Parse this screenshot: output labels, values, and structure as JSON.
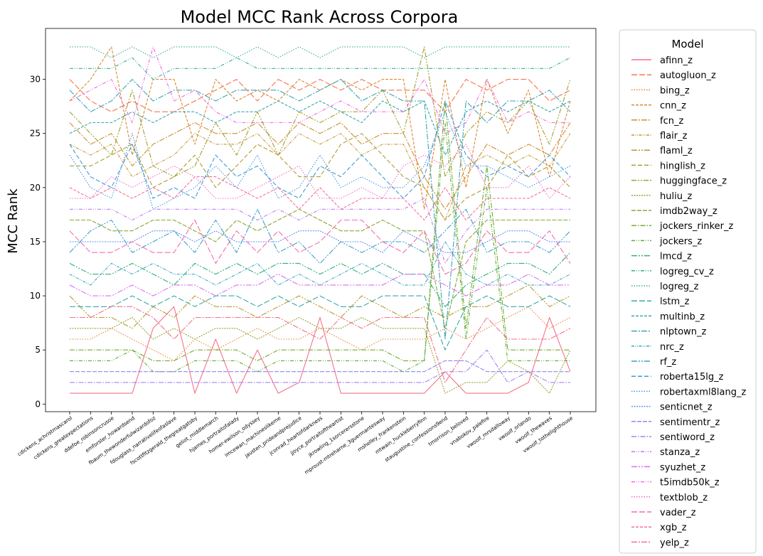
{
  "chart_data": {
    "type": "line",
    "title": "Model MCC Rank Across Corpora",
    "xlabel": "",
    "ylabel": "MCC Rank",
    "ylim": [
      -0.7,
      34.7
    ],
    "yticks": [
      0,
      5,
      10,
      15,
      20,
      25,
      30
    ],
    "grid": false,
    "legend": {
      "title": "Model",
      "placement": "outside-right"
    },
    "categories": [
      "cdickens_achristmascarol",
      "cdickens_greatexpectations",
      "ddefoe_robinsoncrusoe",
      "emforster_howardsend",
      "fbaum_thewonderfulwizardofoz",
      "fdouglass_narrativelifeofaslave",
      "fscottfitzgerald_thegreatgatsby",
      "geliot_middlemarch",
      "hjames_portraitofalady",
      "homer-ewilson_odyssey",
      "imcewan_machineslikeme",
      "jausten_prideandprejudice",
      "jconrad_heartofdarkness",
      "jjoyce_portraitoftheartist",
      "jkrowling_1sorcerersstone",
      "mproust-mtreharne_3guermantesway",
      "mshelley_frankenstein",
      "mtwain_huckleberryfinn",
      "staugustine_confessions9end",
      "tmorrison_beloved",
      "vnabokov_palefire",
      "vwoolf_mrsdalloway",
      "vwoolf_orlando",
      "vwoolf_thewaves",
      "vwoolf_tothelighthouse"
    ],
    "series": [
      {
        "name": "afinn_z",
        "color": "#f77189",
        "dash": "",
        "values": [
          1,
          1,
          1,
          1,
          7,
          9,
          1,
          6,
          1,
          5,
          1,
          2,
          8,
          1,
          1,
          1,
          1,
          1,
          3,
          1,
          1,
          1,
          2,
          8,
          3
        ]
      },
      {
        "name": "autogluon_z",
        "color": "#f7754f",
        "dash": "8,3",
        "values": [
          30,
          28,
          27,
          28,
          27,
          27,
          28,
          29,
          30,
          28,
          30,
          29,
          30,
          29,
          30,
          29,
          29,
          29,
          27,
          30,
          29,
          30,
          30,
          28,
          29
        ]
      },
      {
        "name": "bing_z",
        "color": "#e98230",
        "dash": "1.5,2",
        "values": [
          6,
          6,
          7,
          6,
          5,
          4,
          6,
          5,
          6,
          7,
          6,
          6,
          7,
          6,
          5,
          6,
          6,
          6,
          7,
          6,
          7,
          8,
          9,
          7,
          8
        ]
      },
      {
        "name": "cnn_z",
        "color": "#dc8932",
        "dash": "4,2",
        "values": [
          28,
          30,
          33,
          23,
          30,
          30,
          24,
          30,
          28,
          29,
          28,
          30,
          29,
          30,
          29,
          30,
          30,
          18,
          30,
          20,
          30,
          25,
          29,
          21,
          28
        ]
      },
      {
        "name": "fcn_z",
        "color": "#ce8f31",
        "dash": "8,2,2,2",
        "values": [
          26,
          24,
          25,
          22,
          24,
          25,
          26,
          25,
          25,
          26,
          24,
          26,
          25,
          26,
          24,
          25,
          25,
          21,
          18,
          21,
          24,
          23,
          24,
          23,
          26
        ]
      },
      {
        "name": "flair_z",
        "color": "#c39532",
        "dash": "4,1.5,1,1.5,1,1.5",
        "values": [
          24,
          23,
          24,
          21,
          22,
          23,
          25,
          24,
          24,
          25,
          23,
          25,
          24,
          25,
          23,
          24,
          24,
          20,
          17,
          22,
          23,
          22,
          23,
          22,
          25
        ]
      },
      {
        "name": "flaml_z",
        "color": "#b99a31",
        "dash": "8,2,2,2,2,2",
        "values": [
          10,
          8,
          8,
          7,
          9,
          8,
          10,
          9,
          9,
          8,
          9,
          10,
          9,
          8,
          10,
          9,
          8,
          9,
          8,
          9,
          9,
          10,
          11,
          9,
          10
        ]
      },
      {
        "name": "hinglish_z",
        "color": "#ae9d31",
        "dash": "6,3",
        "values": [
          22,
          22,
          23,
          24,
          20,
          21,
          23,
          20,
          22,
          24,
          23,
          21,
          21,
          24,
          25,
          23,
          21,
          20,
          17,
          19,
          20,
          23,
          21,
          22,
          20
        ]
      },
      {
        "name": "huggingface_z",
        "color": "#a4a031",
        "dash": "7,2,2,2,2,2",
        "values": [
          27,
          25,
          23,
          29,
          22,
          21,
          22,
          26,
          23,
          27,
          23,
          27,
          26,
          27,
          27,
          29,
          25,
          33,
          21,
          25,
          27,
          26,
          28,
          24,
          30
        ]
      },
      {
        "name": "huliu_z",
        "color": "#97a431",
        "dash": "2,1.5",
        "values": [
          7,
          7,
          7,
          8,
          6,
          7,
          6,
          7,
          7,
          6,
          7,
          8,
          7,
          7,
          8,
          7,
          7,
          7,
          1,
          2,
          2,
          4,
          3,
          1,
          5
        ]
      },
      {
        "name": "imdb2way_z",
        "color": "#8aa831",
        "dash": "6,2",
        "values": [
          17,
          17,
          16,
          16,
          17,
          17,
          16,
          15,
          17,
          16,
          17,
          18,
          17,
          16,
          16,
          17,
          16,
          16,
          7,
          15,
          17,
          17,
          17,
          17,
          17
        ]
      },
      {
        "name": "jockers_rinker_z",
        "color": "#76ab31",
        "dash": "7,2,1.5,2",
        "values": [
          5,
          5,
          5,
          5,
          4,
          4,
          5,
          5,
          5,
          4,
          5,
          5,
          5,
          5,
          5,
          5,
          4,
          4,
          28,
          7,
          22,
          5,
          5,
          5,
          5
        ]
      },
      {
        "name": "jockers_z",
        "color": "#55ae32",
        "dash": "5,2,1,2,1,2",
        "values": [
          4,
          4,
          4,
          5,
          3,
          3,
          4,
          4,
          4,
          3,
          4,
          4,
          4,
          4,
          4,
          4,
          3,
          4,
          26,
          6,
          20,
          4,
          4,
          4,
          4
        ]
      },
      {
        "name": "lmcd_z",
        "color": "#33b07a",
        "dash": "8,2,2,2,2,2",
        "values": [
          13,
          12,
          12,
          13,
          12,
          11,
          13,
          12,
          13,
          12,
          13,
          13,
          12,
          13,
          12,
          13,
          12,
          12,
          9,
          11,
          12,
          13,
          13,
          12,
          14
        ]
      },
      {
        "name": "logreg_cv_z",
        "color": "#35ad93",
        "dash": "5,2,1,2,1,2",
        "values": [
          31,
          31,
          31,
          32,
          30,
          31,
          31,
          31,
          32,
          31,
          31,
          31,
          31,
          31,
          31,
          31,
          31,
          31,
          31,
          31,
          31,
          31,
          31,
          31,
          32
        ]
      },
      {
        "name": "logreg_z",
        "color": "#36ab9f",
        "dash": "1.5,2",
        "values": [
          33,
          33,
          32,
          33,
          32,
          33,
          33,
          33,
          32,
          33,
          32,
          33,
          32,
          33,
          33,
          33,
          33,
          32,
          33,
          33,
          33,
          33,
          33,
          33,
          33
        ]
      },
      {
        "name": "lstm_z",
        "color": "#37aaa8",
        "dash": "8,3",
        "values": [
          9,
          9,
          9,
          10,
          9,
          10,
          9,
          10,
          10,
          9,
          10,
          9,
          10,
          9,
          9,
          10,
          10,
          10,
          5,
          9,
          10,
          9,
          9,
          10,
          9
        ]
      },
      {
        "name": "multinb_z",
        "color": "#38a8b0",
        "dash": "4,2",
        "values": [
          25,
          26,
          26,
          27,
          26,
          27,
          27,
          26,
          27,
          27,
          28,
          27,
          28,
          27,
          26,
          28,
          27,
          28,
          23,
          27,
          28,
          27,
          28,
          27,
          28
        ]
      },
      {
        "name": "nlptown_z",
        "color": "#39a6b8",
        "dash": "8,2,2,2",
        "values": [
          29,
          27,
          28,
          30,
          28,
          29,
          29,
          28,
          29,
          29,
          29,
          28,
          29,
          30,
          28,
          29,
          28,
          28,
          6,
          28,
          26,
          28,
          28,
          29,
          27
        ]
      },
      {
        "name": "nrc_z",
        "color": "#3aa4c1",
        "dash": "4,1.5,1,1.5,1,1.5",
        "values": [
          12,
          11,
          13,
          12,
          13,
          12,
          12,
          11,
          12,
          13,
          11,
          12,
          11,
          12,
          13,
          12,
          11,
          11,
          15,
          12,
          11,
          12,
          11,
          11,
          12
        ]
      },
      {
        "name": "rf_z",
        "color": "#3ca1cc",
        "dash": "8,2,2,2,2,2",
        "values": [
          14,
          16,
          17,
          14,
          15,
          16,
          14,
          17,
          14,
          18,
          14,
          15,
          13,
          15,
          14,
          15,
          15,
          14,
          16,
          18,
          14,
          15,
          15,
          14,
          16
        ]
      },
      {
        "name": "roberta15lg_z",
        "color": "#3e9cd9",
        "dash": "6,3",
        "values": [
          24,
          21,
          20,
          24,
          19,
          20,
          19,
          23,
          21,
          22,
          20,
          19,
          22,
          21,
          23,
          21,
          19,
          21,
          28,
          23,
          21,
          22,
          21,
          23,
          21
        ]
      },
      {
        "name": "robertaxml8lang_z",
        "color": "#4297ea",
        "dash": "1.5,2",
        "values": [
          23,
          20,
          19,
          25,
          18,
          19,
          20,
          22,
          20,
          23,
          19,
          20,
          23,
          20,
          21,
          20,
          20,
          22,
          27,
          22,
          22,
          21,
          20,
          21,
          22
        ]
      },
      {
        "name": "senticnet_z",
        "color": "#6690f3",
        "dash": "2,1.5",
        "values": [
          15,
          15,
          15,
          15,
          16,
          16,
          15,
          16,
          15,
          15,
          15,
          16,
          16,
          15,
          15,
          14,
          16,
          15,
          14,
          14,
          15,
          16,
          16,
          15,
          15
        ]
      },
      {
        "name": "sentimentr_z",
        "color": "#8d88f3",
        "dash": "6,2",
        "values": [
          3,
          3,
          3,
          3,
          3,
          3,
          3,
          3,
          3,
          3,
          3,
          3,
          3,
          3,
          3,
          3,
          3,
          3,
          4,
          4,
          3,
          3,
          3,
          3,
          3
        ]
      },
      {
        "name": "sentiword_z",
        "color": "#a981f4",
        "dash": "7,2,1.5,2",
        "values": [
          2,
          2,
          2,
          2,
          2,
          2,
          2,
          2,
          2,
          2,
          2,
          2,
          2,
          2,
          2,
          2,
          2,
          2,
          3,
          3,
          5,
          2,
          3,
          2,
          2
        ]
      },
      {
        "name": "stanza_z",
        "color": "#c179f4",
        "dash": "5,2,1,2,1,2",
        "values": [
          18,
          18,
          18,
          17,
          18,
          18,
          18,
          18,
          18,
          17,
          18,
          17,
          18,
          18,
          18,
          18,
          18,
          19,
          13,
          16,
          18,
          18,
          18,
          18,
          18
        ]
      },
      {
        "name": "syuzhet_z",
        "color": "#d96ff4",
        "dash": "8,2,2,2,2,2",
        "values": [
          11,
          10,
          10,
          11,
          10,
          11,
          11,
          10,
          11,
          11,
          12,
          11,
          11,
          11,
          11,
          11,
          12,
          12,
          11,
          10,
          11,
          11,
          12,
          11,
          11
        ]
      },
      {
        "name": "t5imdb50k_z",
        "color": "#f565e4",
        "dash": "5,2,1,2,1,2",
        "values": [
          28,
          29,
          30,
          26,
          33,
          28,
          29,
          27,
          26,
          26,
          26,
          26,
          27,
          28,
          27,
          27,
          27,
          30,
          25,
          26,
          30,
          26,
          27,
          26,
          26
        ]
      },
      {
        "name": "textblob_z",
        "color": "#f56ac6",
        "dash": "1.5,2",
        "values": [
          19,
          19,
          21,
          20,
          21,
          22,
          21,
          19,
          19,
          20,
          21,
          22,
          19,
          19,
          20,
          19,
          22,
          23,
          22,
          24,
          20,
          20,
          22,
          19,
          21
        ]
      },
      {
        "name": "vader_z",
        "color": "#f66dae",
        "dash": "8,3",
        "values": [
          16,
          14,
          14,
          15,
          14,
          14,
          17,
          13,
          16,
          14,
          16,
          14,
          15,
          17,
          17,
          15,
          14,
          16,
          12,
          13,
          16,
          14,
          14,
          16,
          13
        ]
      },
      {
        "name": "xgb_z",
        "color": "#f66f9b",
        "dash": "4,2",
        "values": [
          20,
          19,
          20,
          19,
          20,
          19,
          21,
          21,
          20,
          19,
          20,
          18,
          20,
          18,
          19,
          19,
          19,
          17,
          20,
          17,
          19,
          19,
          19,
          20,
          19
        ]
      },
      {
        "name": "yelp_z",
        "color": "#f7718a",
        "dash": "8,2,2,2",
        "values": [
          8,
          8,
          9,
          9,
          8,
          6,
          8,
          8,
          8,
          8,
          8,
          7,
          6,
          8,
          7,
          8,
          8,
          8,
          2,
          5,
          8,
          6,
          6,
          6,
          7
        ]
      }
    ]
  }
}
